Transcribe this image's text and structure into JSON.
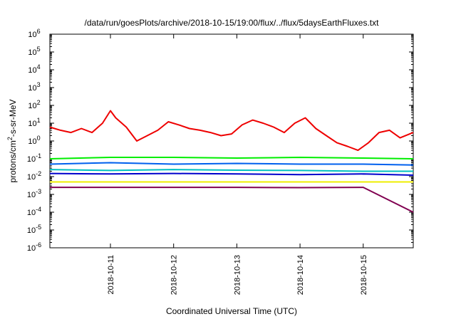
{
  "chart_data": {
    "type": "line",
    "title": "/data/run/goesPlots/archive/2018-10-15/19:00/flux/../flux/5daysEarthFluxes.txt",
    "xlabel": "Coordinated Universal Time (UTC)",
    "ylabel": "protons/cm²-s-sr-MeV",
    "yscale": "log",
    "ylim": [
      1e-06,
      1000000.0
    ],
    "xlim": [
      "2018-10-10T01:00",
      "2018-10-15T19:00"
    ],
    "grid": false,
    "y_ticks": [
      {
        "value": 1e-06,
        "label": "10",
        "exp": "-6"
      },
      {
        "value": 1e-05,
        "label": "10",
        "exp": "-5"
      },
      {
        "value": 0.0001,
        "label": "10",
        "exp": "-4"
      },
      {
        "value": 0.001,
        "label": "10",
        "exp": "-3"
      },
      {
        "value": 0.01,
        "label": "10",
        "exp": "-2"
      },
      {
        "value": 0.1,
        "label": "10",
        "exp": "-1"
      },
      {
        "value": 1,
        "label": "10",
        "exp": "0"
      },
      {
        "value": 10,
        "label": "10",
        "exp": "1"
      },
      {
        "value": 100,
        "label": "10",
        "exp": "2"
      },
      {
        "value": 1000,
        "label": "10",
        "exp": "3"
      },
      {
        "value": 10000,
        "label": "10",
        "exp": "4"
      },
      {
        "value": 100000,
        "label": "10",
        "exp": "5"
      },
      {
        "value": 1000000,
        "label": "10",
        "exp": "6"
      }
    ],
    "x_ticks": [
      "2018-10-11",
      "2018-10-12",
      "2018-10-13",
      "2018-10-14",
      "2018-10-15"
    ],
    "series": [
      {
        "color": "#ee0000",
        "x": [
          "2018-10-10T01:00",
          "2018-10-10T05:00",
          "2018-10-10T09:00",
          "2018-10-10T13:00",
          "2018-10-10T17:00",
          "2018-10-10T21:00",
          "2018-10-11T00:00",
          "2018-10-11T02:00",
          "2018-10-11T06:00",
          "2018-10-11T10:00",
          "2018-10-11T14:00",
          "2018-10-11T18:00",
          "2018-10-11T22:00",
          "2018-10-12T02:00",
          "2018-10-12T06:00",
          "2018-10-12T10:00",
          "2018-10-12T14:00",
          "2018-10-12T18:00",
          "2018-10-12T22:00",
          "2018-10-13T02:00",
          "2018-10-13T06:00",
          "2018-10-13T10:00",
          "2018-10-13T14:00",
          "2018-10-13T18:00",
          "2018-10-13T22:00",
          "2018-10-14T02:00",
          "2018-10-14T06:00",
          "2018-10-14T10:00",
          "2018-10-14T14:00",
          "2018-10-14T18:00",
          "2018-10-14T22:00",
          "2018-10-15T02:00",
          "2018-10-15T06:00",
          "2018-10-15T10:00",
          "2018-10-15T14:00",
          "2018-10-15T19:00"
        ],
        "y": [
          6,
          4,
          3,
          5,
          3,
          10,
          50,
          20,
          6,
          1,
          2,
          4,
          12,
          8,
          5,
          4,
          3,
          2,
          2.5,
          8,
          15,
          10,
          6,
          3,
          10,
          20,
          5,
          2,
          0.8,
          0.5,
          0.3,
          0.8,
          3,
          4,
          1.5,
          3
        ]
      },
      {
        "color": "#00ee00",
        "x": [
          "2018-10-10T01:00",
          "2018-10-11T00:00",
          "2018-10-12T00:00",
          "2018-10-13T00:00",
          "2018-10-14T00:00",
          "2018-10-15T00:00",
          "2018-10-15T19:00"
        ],
        "y": [
          0.1,
          0.12,
          0.12,
          0.11,
          0.12,
          0.11,
          0.1
        ]
      },
      {
        "color": "#0060ee",
        "x": [
          "2018-10-10T01:00",
          "2018-10-11T00:00",
          "2018-10-12T00:00",
          "2018-10-13T00:00",
          "2018-10-14T00:00",
          "2018-10-15T00:00",
          "2018-10-15T19:00"
        ],
        "y": [
          0.05,
          0.06,
          0.05,
          0.055,
          0.05,
          0.05,
          0.045
        ]
      },
      {
        "color": "#00c0c0",
        "x": [
          "2018-10-10T01:00",
          "2018-10-11T00:00",
          "2018-10-12T00:00",
          "2018-10-13T00:00",
          "2018-10-14T00:00",
          "2018-10-15T00:00",
          "2018-10-15T19:00"
        ],
        "y": [
          0.025,
          0.022,
          0.025,
          0.023,
          0.022,
          0.02,
          0.02
        ]
      },
      {
        "color": "#0000cc",
        "x": [
          "2018-10-10T01:00",
          "2018-10-11T00:00",
          "2018-10-12T00:00",
          "2018-10-13T00:00",
          "2018-10-14T00:00",
          "2018-10-15T00:00",
          "2018-10-15T19:00"
        ],
        "y": [
          0.015,
          0.014,
          0.015,
          0.014,
          0.013,
          0.014,
          0.012
        ]
      },
      {
        "color": "#eeee00",
        "x": [
          "2018-10-10T01:00",
          "2018-10-11T00:00",
          "2018-10-12T00:00",
          "2018-10-13T00:00",
          "2018-10-14T00:00",
          "2018-10-15T00:00",
          "2018-10-15T19:00"
        ],
        "y": [
          0.005,
          0.005,
          0.005,
          0.005,
          0.005,
          0.005,
          0.005
        ]
      },
      {
        "color": "#800050",
        "x": [
          "2018-10-10T01:00",
          "2018-10-11T00:00",
          "2018-10-12T00:00",
          "2018-10-13T00:00",
          "2018-10-14T00:00",
          "2018-10-15T00:00",
          "2018-10-15T19:00"
        ],
        "y": [
          0.0025,
          0.0025,
          0.0025,
          0.0025,
          0.0024,
          0.0025,
          0.0001
        ]
      }
    ]
  }
}
